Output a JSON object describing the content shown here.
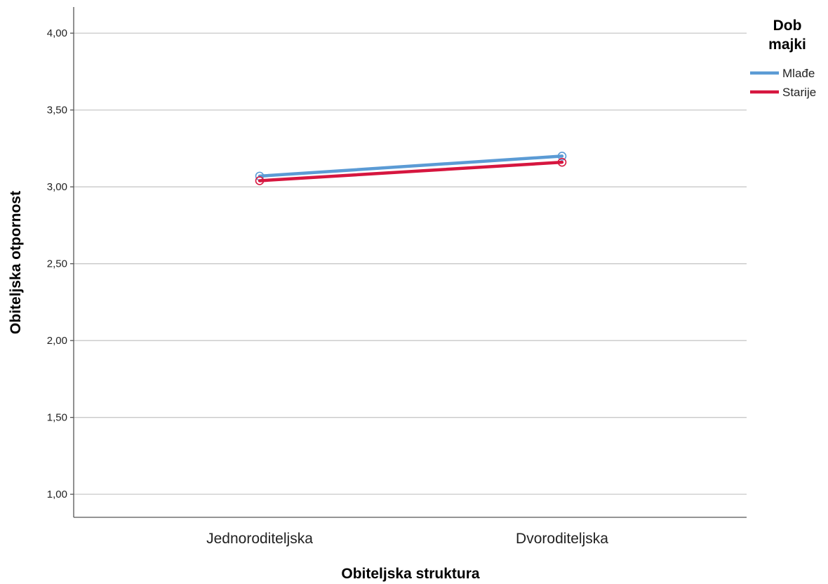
{
  "chart_data": {
    "type": "line",
    "title": "",
    "xlabel": "Obiteljska struktura",
    "ylabel": "Obiteljska otpornost",
    "categories": [
      "Jednoroditeljska",
      "Dvoroditeljska"
    ],
    "ylim": [
      0.85,
      4.17
    ],
    "yticks": [
      1.0,
      1.5,
      2.0,
      2.5,
      3.0,
      3.5,
      4.0
    ],
    "ytick_labels": [
      "1,00",
      "1,50",
      "2,00",
      "2,50",
      "3,00",
      "3,50",
      "4,00"
    ],
    "grid": true,
    "legend": {
      "title_lines": [
        "Dob",
        "majki"
      ],
      "position": "right"
    },
    "series": [
      {
        "name": "Mlađe",
        "values": [
          3.07,
          3.2
        ],
        "color": "#5b9bd5"
      },
      {
        "name": "Starije",
        "values": [
          3.04,
          3.16
        ],
        "color": "#d6163f"
      }
    ]
  }
}
